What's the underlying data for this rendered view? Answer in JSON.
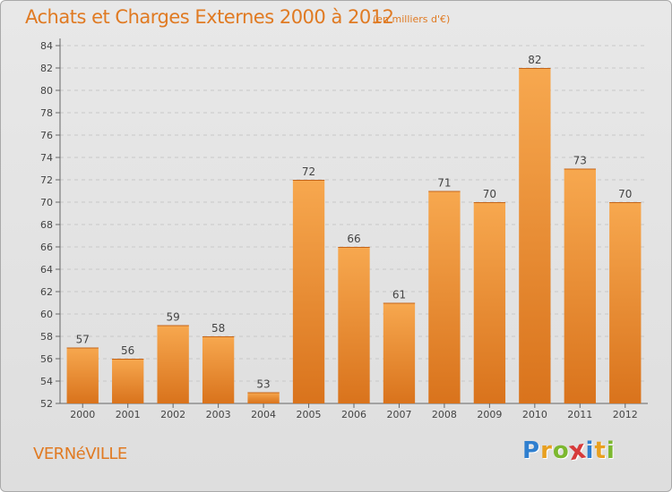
{
  "title": "Achats et Charges Externes 2000 à 2012",
  "unit": "(en milliers d'€)",
  "place": "VERNéVILLE",
  "logo": {
    "letters": [
      "P",
      "r",
      "o",
      "x",
      "i",
      "t",
      "i"
    ],
    "colors": [
      "#2f7fcf",
      "#e8a020",
      "#7cb82f",
      "#d63a3a",
      "#2f7fcf",
      "#e8a020",
      "#7cb82f"
    ]
  },
  "colors": {
    "accent": "#e07a22",
    "bar_light": "#f7a84f",
    "bar_dark": "#d9731c"
  },
  "chart_data": {
    "type": "bar",
    "categories": [
      "2000",
      "2001",
      "2002",
      "2003",
      "2004",
      "2005",
      "2006",
      "2007",
      "2008",
      "2009",
      "2010",
      "2011",
      "2012"
    ],
    "values": [
      57,
      56,
      59,
      58,
      53,
      72,
      66,
      61,
      71,
      70,
      82,
      73,
      70
    ],
    "ylim": [
      52,
      84
    ],
    "yticks": [
      52,
      54,
      56,
      58,
      60,
      62,
      64,
      66,
      68,
      70,
      72,
      74,
      76,
      78,
      80,
      82,
      84
    ],
    "grid": true,
    "data_labels": true
  }
}
